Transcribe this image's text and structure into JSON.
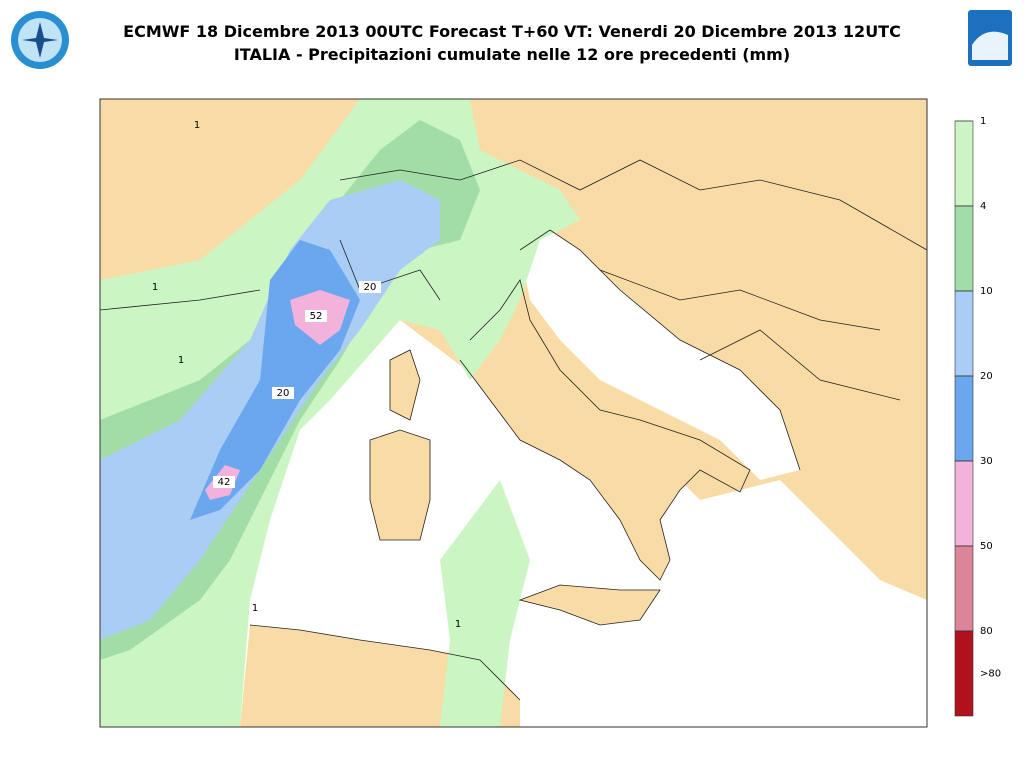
{
  "header": {
    "title_lines": [
      "ECMWF 18 Dicembre 2013 00UTC Forecast T+60 VT: Venerdi 20 Dicembre 2013 12UTC",
      "ITALIA - Precipitazioni cumulate nelle 12 ore precedenti (mm)"
    ]
  },
  "legend": {
    "labels": [
      "1",
      "4",
      "10",
      "20",
      "30",
      "50",
      "80",
      ">80"
    ],
    "colors": [
      "#ccf5c4",
      "#a2dca6",
      "#a9cdf5",
      "#6aa7ee",
      "#f2b2dc",
      "#dc8498",
      "#b2101c"
    ]
  },
  "map": {
    "labels": [
      "1",
      "1",
      "1",
      "20",
      "20",
      "52",
      "42",
      "1",
      "1"
    ]
  }
}
